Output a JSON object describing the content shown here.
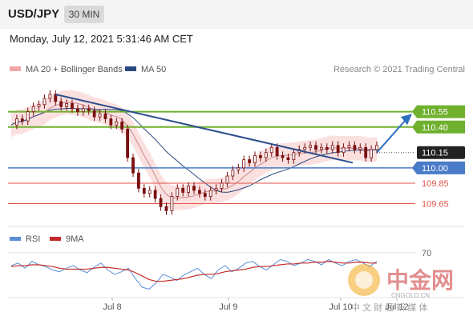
{
  "header": {
    "pair": "USD/JPY",
    "timeframe": "30 MIN"
  },
  "date_text": "Monday, July 12, 2021 5:31:46 AM CET",
  "legend": {
    "ma20_bb": "MA 20 + Bollinger Bands",
    "ma50": "MA 50",
    "credit": "Research © 2021 Trading Central"
  },
  "rsi_legend": {
    "rsi": "RSI",
    "ma9": "9MA"
  },
  "watermark": {
    "brand": "中金网",
    "url": "CNGOLD.CN",
    "tagline": "中 文 财 经 新 媒 体"
  },
  "colors": {
    "candle": "#7a1010",
    "bb_fill": "#f9d3d3",
    "ma20": "#c8898f",
    "ma50": "#2a4a7f",
    "trend": "#2c4f8c",
    "resistance": "#6fb02e",
    "support_blue": "#4a7bc8",
    "support_red": "#e2554a",
    "rsi": "#5b8fd6",
    "ma9": "#c42a2a",
    "arrow": "#2f6fbf"
  },
  "chart_data": [
    {
      "type": "candlestick",
      "title": "USD/JPY 30 MIN",
      "x_labels": [
        "Jul 8",
        "Jul 9",
        "Jul 10",
        "Jul 12"
      ],
      "ylim": [
        109.45,
        110.9
      ],
      "grid": true,
      "legend_position": "top-left",
      "levels": [
        {
          "label": "110.55",
          "value": 110.55,
          "kind": "resistance"
        },
        {
          "label": "110.40",
          "value": 110.4,
          "kind": "resistance"
        },
        {
          "label": "110.15",
          "value": 110.15,
          "kind": "pivot"
        },
        {
          "label": "110.00",
          "value": 110.0,
          "kind": "support"
        },
        {
          "label": "109.85",
          "value": 109.85,
          "kind": "support"
        },
        {
          "label": "109.65",
          "value": 109.65,
          "kind": "support"
        }
      ],
      "close_path": [
        110.42,
        110.48,
        110.46,
        110.55,
        110.6,
        110.62,
        110.68,
        110.72,
        110.65,
        110.6,
        110.63,
        110.58,
        110.55,
        110.58,
        110.56,
        110.5,
        110.53,
        110.48,
        110.42,
        110.45,
        110.38,
        110.1,
        109.95,
        109.8,
        109.75,
        109.78,
        109.7,
        109.62,
        109.58,
        109.72,
        109.8,
        109.76,
        109.82,
        109.78,
        109.75,
        109.72,
        109.78,
        109.8,
        109.85,
        109.92,
        109.98,
        110.0,
        110.08,
        110.05,
        110.12,
        110.1,
        110.15,
        110.2,
        110.12,
        110.1,
        110.08,
        110.15,
        110.18,
        110.2,
        110.22,
        110.18,
        110.2,
        110.18,
        110.22,
        110.15,
        110.2,
        110.22,
        110.18,
        110.2,
        110.1,
        110.18,
        110.22
      ]
    },
    {
      "type": "line",
      "title": "RSI",
      "ylim": [
        20,
        80
      ],
      "tick_labels": [
        "70"
      ],
      "series": [
        {
          "name": "RSI",
          "values": [
            55,
            58,
            52,
            60,
            56,
            54,
            50,
            48,
            52,
            55,
            50,
            47,
            53,
            58,
            50,
            45,
            48,
            52,
            40,
            30,
            28,
            35,
            45,
            42,
            38,
            44,
            48,
            52,
            45,
            40,
            50,
            55,
            48,
            52,
            58,
            60,
            54,
            50,
            56,
            62,
            60,
            55,
            58,
            62,
            60,
            56,
            62,
            58,
            55,
            60,
            62,
            58,
            54,
            60
          ]
        },
        {
          "name": "9MA",
          "values": [
            54,
            55,
            55,
            56,
            56,
            55,
            54,
            52,
            51,
            51,
            51,
            51,
            52,
            53,
            53,
            52,
            51,
            50,
            47,
            43,
            39,
            37,
            37,
            38,
            39,
            40,
            42,
            44,
            45,
            45,
            46,
            48,
            49,
            50,
            51,
            53,
            54,
            54,
            55,
            56,
            57,
            57,
            58,
            58,
            59,
            59,
            60,
            59,
            58,
            58,
            59,
            59,
            58,
            58
          ]
        }
      ]
    }
  ]
}
